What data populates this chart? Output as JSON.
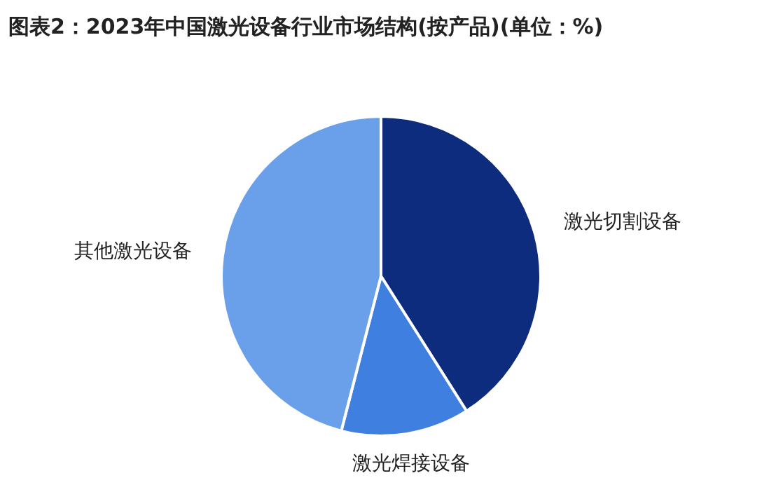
{
  "chart_data": {
    "type": "pie",
    "title": "图表2：2023年中国激光设备行业市场结构(按产品)(单位：%)",
    "categories": [
      "激光切割设备",
      "激光焊接设备",
      "其他激光设备"
    ],
    "values": [
      41,
      13,
      46
    ],
    "colors": [
      "#0d2c7e",
      "#3f7fe0",
      "#6aa0ea"
    ],
    "legend": false
  }
}
